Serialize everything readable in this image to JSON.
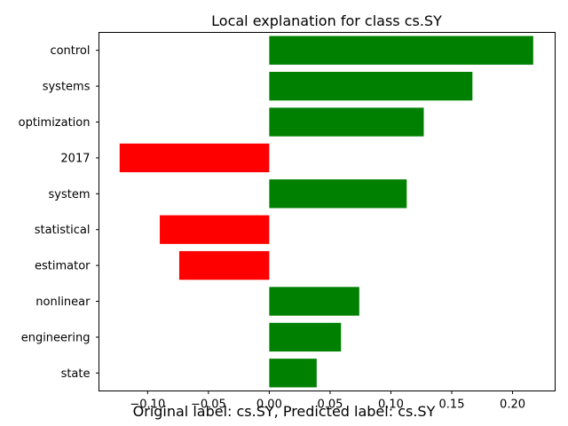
{
  "chart_data": {
    "type": "bar",
    "orientation": "horizontal",
    "title": "Local explanation for class cs.SY",
    "xlabel": "",
    "ylabel": "",
    "categories": [
      "control",
      "systems",
      "optimization",
      "2017",
      "system",
      "statistical",
      "estimator",
      "nonlinear",
      "engineering",
      "state"
    ],
    "values": [
      0.217,
      0.167,
      0.127,
      -0.123,
      0.113,
      -0.09,
      -0.074,
      0.074,
      0.059,
      0.039
    ],
    "xlim": [
      -0.14,
      0.235
    ],
    "xticks": [
      -0.1,
      -0.05,
      0.0,
      0.05,
      0.1,
      0.15,
      0.2
    ],
    "xtick_labels": [
      "−0.10",
      "−0.05",
      "0.00",
      "0.05",
      "0.10",
      "0.15",
      "0.20"
    ],
    "grid": false,
    "colors": {
      "positive": "#008000",
      "negative": "#ff0000"
    }
  },
  "caption": "Original label: cs.SY, Predicted label: cs.SY"
}
